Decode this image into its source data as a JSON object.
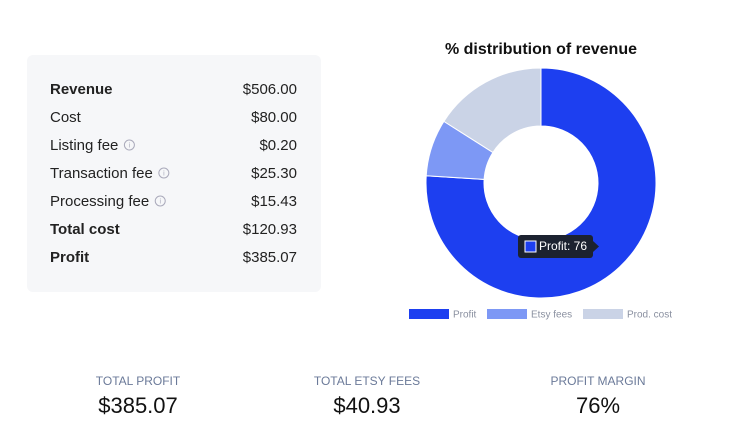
{
  "breakdown": {
    "rows": [
      {
        "label": "Revenue",
        "value": "$506.00",
        "bold": true,
        "info": false
      },
      {
        "label": "Cost",
        "value": "$80.00",
        "bold": false,
        "info": false
      },
      {
        "label": "Listing fee",
        "value": "$0.20",
        "bold": false,
        "info": true
      },
      {
        "label": "Transaction fee",
        "value": "$25.30",
        "bold": false,
        "info": true
      },
      {
        "label": "Processing fee",
        "value": "$15.43",
        "bold": false,
        "info": true
      },
      {
        "label": "Total cost",
        "value": "$120.93",
        "bold": true,
        "info": false
      },
      {
        "label": "Profit",
        "value": "$385.07",
        "bold": true,
        "info": false
      }
    ]
  },
  "chart_data": {
    "type": "doughnut",
    "title": "% distribution of revenue",
    "categories": [
      "Profit",
      "Etsy fees",
      "Prod. cost"
    ],
    "values": [
      76,
      8,
      16
    ],
    "colors": [
      "#1d3ff0",
      "#7d98f5",
      "#cad3e6"
    ],
    "tooltip": "Profit: 76"
  },
  "stats": [
    {
      "label": "TOTAL PROFIT",
      "value": "$385.07"
    },
    {
      "label": "TOTAL ETSY FEES",
      "value": "$40.93"
    },
    {
      "label": "PROFIT MARGIN",
      "value": "76%"
    }
  ]
}
